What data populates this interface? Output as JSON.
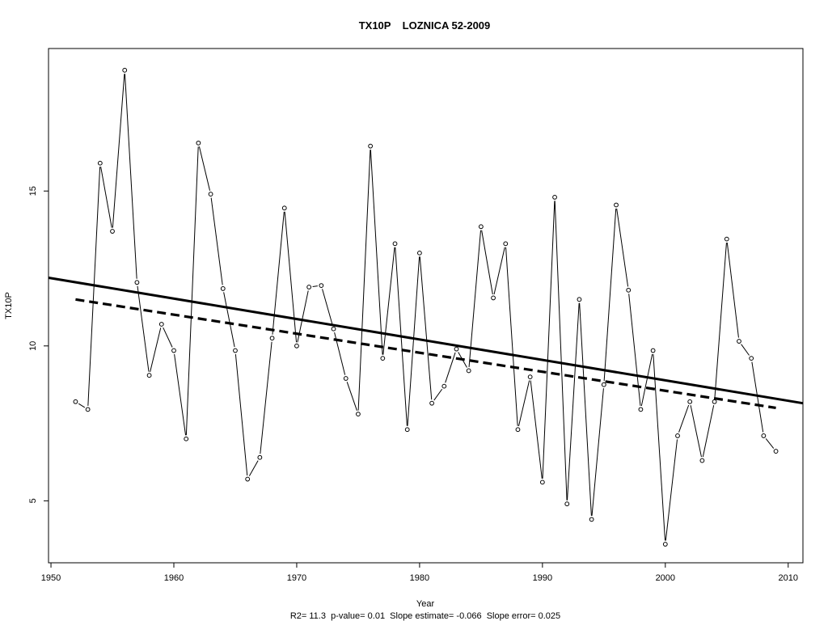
{
  "chart_data": {
    "type": "line",
    "title": "TX10P    LOZNICA 52-2009",
    "xlabel": "Year",
    "ylabel": "TX10P",
    "footer": "R2= 11.3  p-value= 0.01  Slope estimate= -0.066  Slope error= 0.025",
    "xlim": [
      1949.8,
      2011.2
    ],
    "ylim": [
      3.0,
      19.6
    ],
    "x_ticks": [
      1950,
      1960,
      1970,
      1980,
      1990,
      2000,
      2010
    ],
    "y_ticks": [
      5,
      10,
      15
    ],
    "grid": false,
    "legend": "none",
    "series": [
      {
        "x": [
          1952,
          1953,
          1954,
          1955,
          1956,
          1957,
          1958,
          1959,
          1960,
          1961,
          1962,
          1963,
          1964,
          1965,
          1966,
          1967,
          1968,
          1969,
          1970,
          1971,
          1972,
          1973,
          1974,
          1975,
          1976,
          1977,
          1978,
          1979,
          1980,
          1981,
          1982,
          1983,
          1984,
          1985,
          1986,
          1987,
          1988,
          1989,
          1990,
          1991,
          1992,
          1993,
          1994,
          1995,
          1996,
          1997,
          1998,
          1999,
          2000,
          2001,
          2002,
          2003,
          2004,
          2005,
          2006,
          2007,
          2008,
          2009
        ],
        "values": [
          8.2,
          7.95,
          15.9,
          13.7,
          18.9,
          12.05,
          9.05,
          10.7,
          9.85,
          7.0,
          16.55,
          14.9,
          11.85,
          9.85,
          5.7,
          6.4,
          10.25,
          14.45,
          10.0,
          11.9,
          11.95,
          10.55,
          8.95,
          7.8,
          16.45,
          9.6,
          13.3,
          7.3,
          13.0,
          8.15,
          8.7,
          9.9,
          9.2,
          13.85,
          11.55,
          13.3,
          7.3,
          9.0,
          5.6,
          14.8,
          4.9,
          11.5,
          4.4,
          8.75,
          14.55,
          11.8,
          7.95,
          9.85,
          3.6,
          7.1,
          8.2,
          6.3,
          8.2,
          13.45,
          10.15,
          9.6,
          7.1,
          6.6
        ],
        "line_color": "#000000"
      }
    ],
    "trend_lines": [
      {
        "style": "solid",
        "x": [
          1949.8,
          2011.2
        ],
        "values": [
          12.2,
          8.15
        ]
      },
      {
        "style": "dashed",
        "x": [
          1952,
          2009
        ],
        "values": [
          11.5,
          8.0
        ]
      }
    ]
  }
}
